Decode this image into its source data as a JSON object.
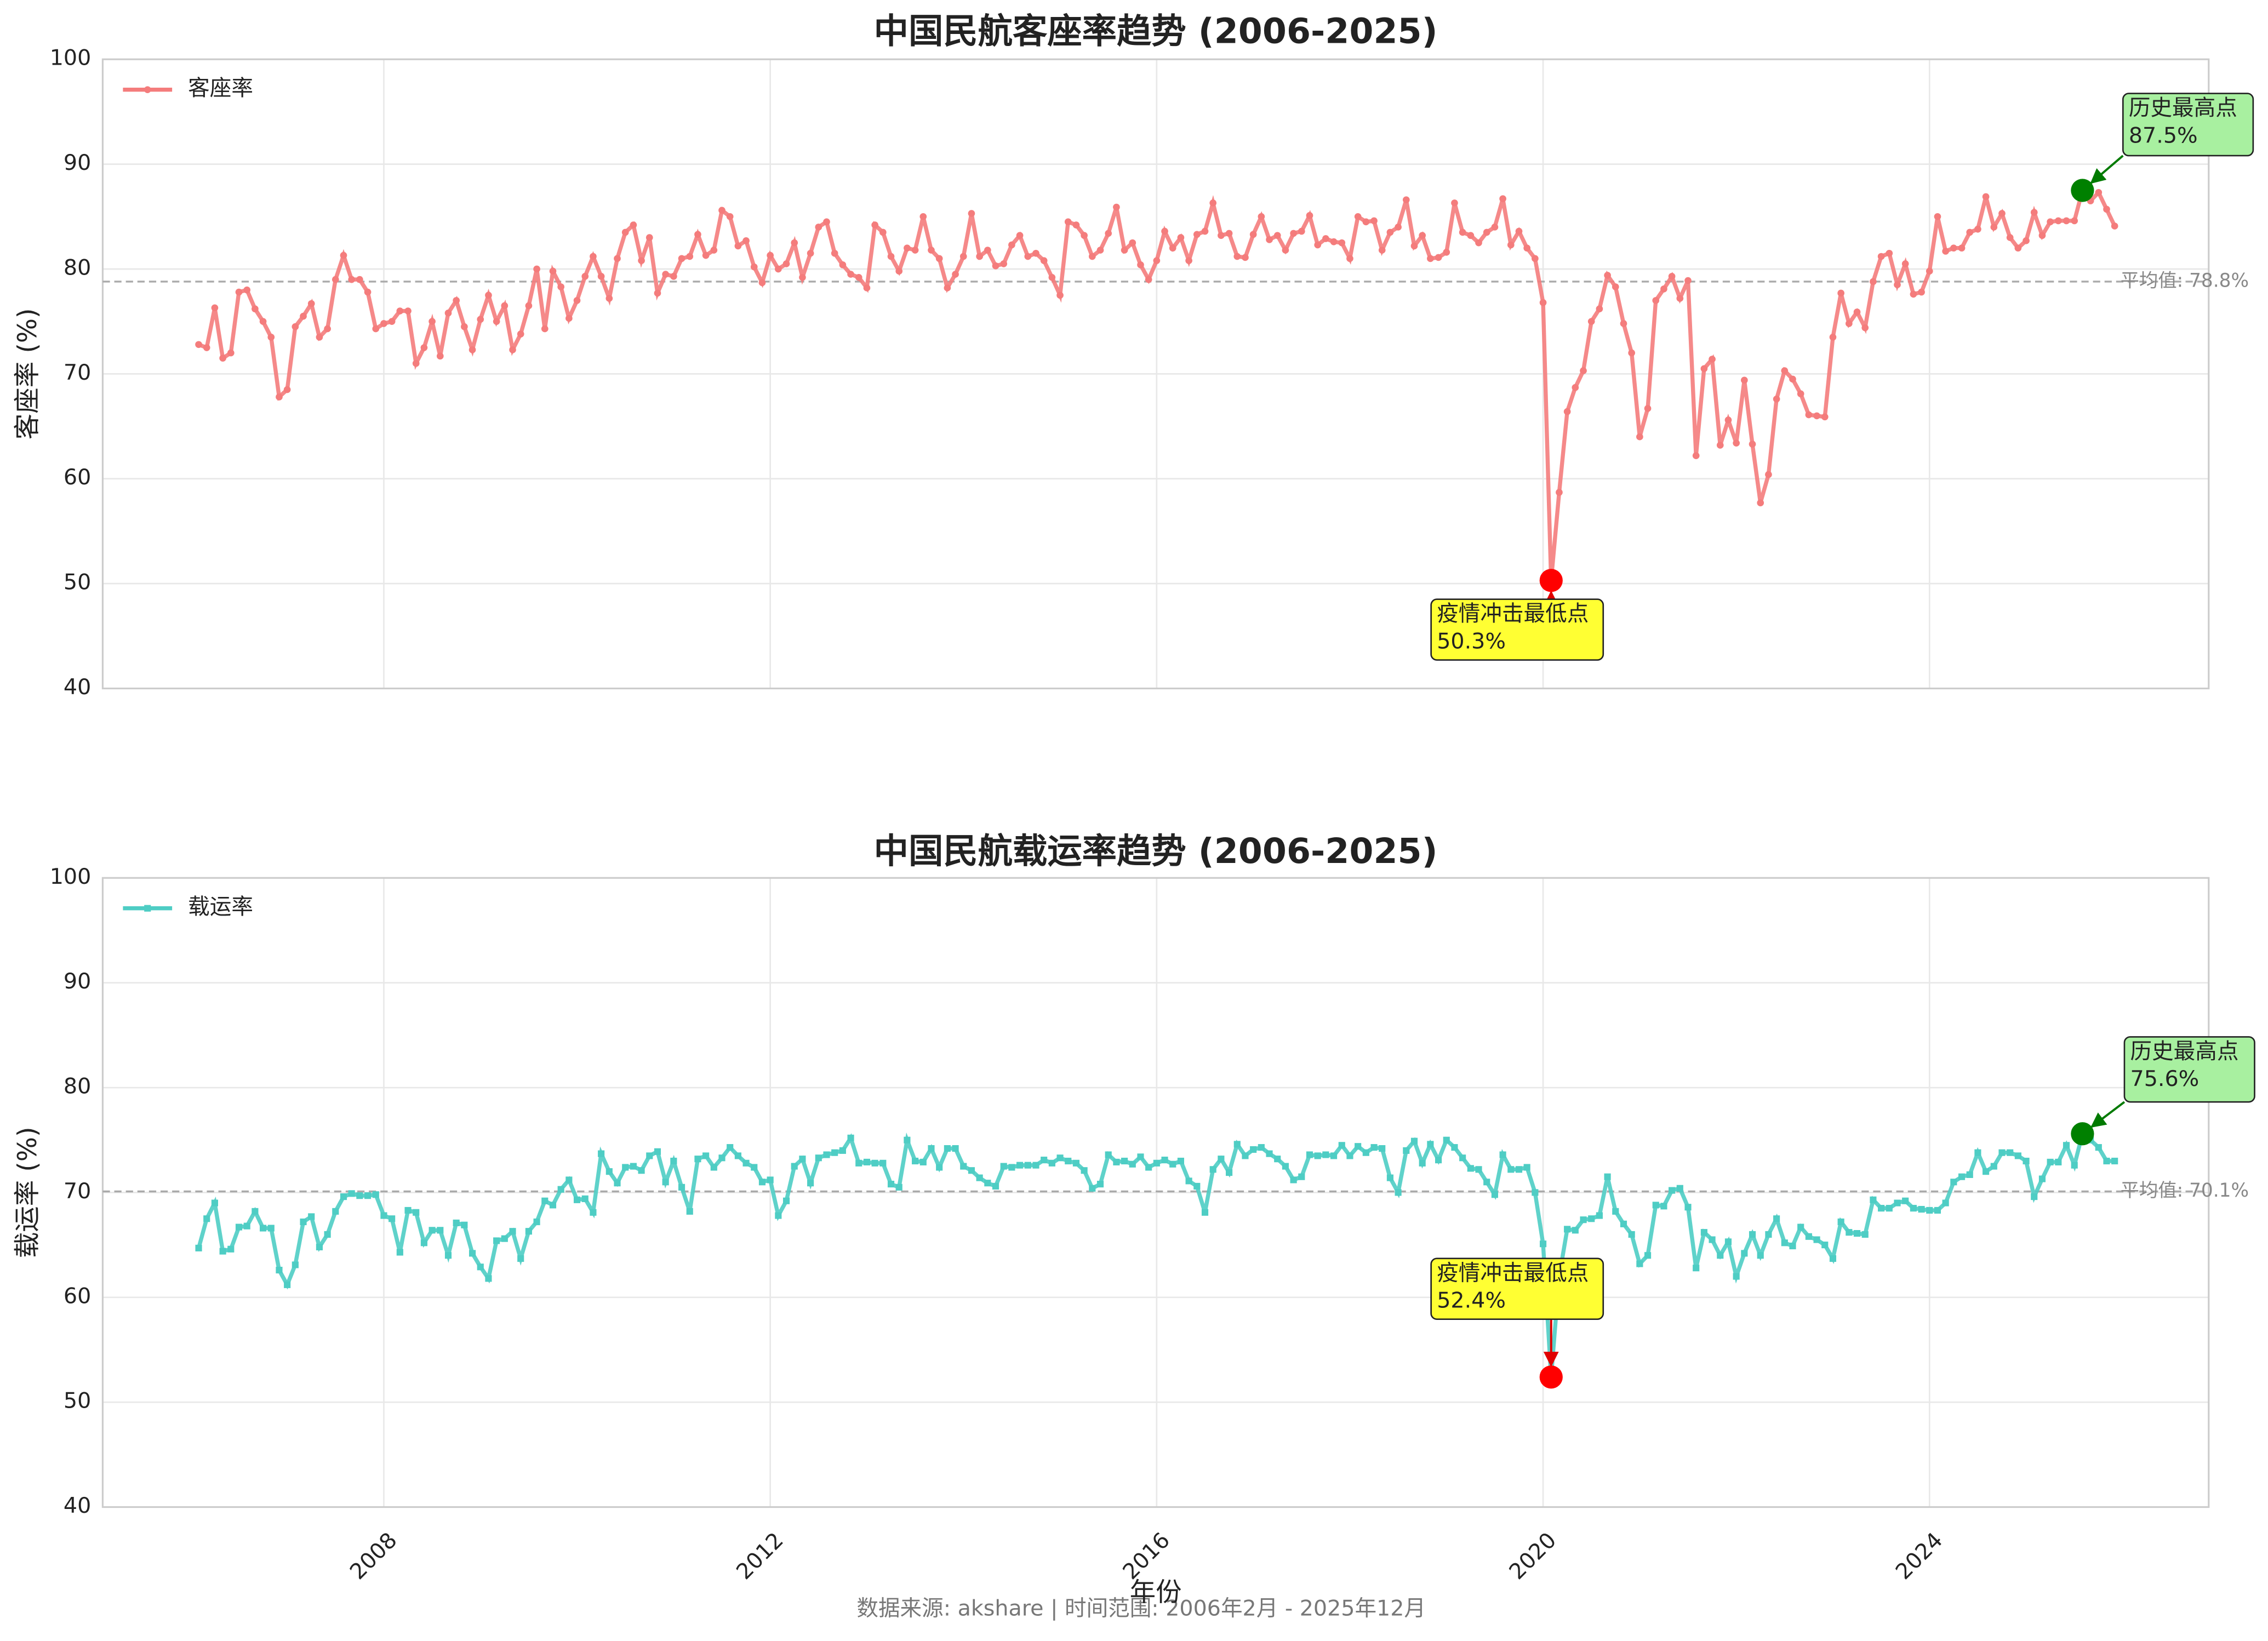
{
  "footnote": "数据来源: akshare | 时间范围: 2006年2月 - 2025年12月",
  "chart_data": [
    {
      "type": "line",
      "title": "中国民航客座率趋势 (2006-2025)",
      "ylabel": "客座率 (%)",
      "grid": true,
      "legend": "upper left",
      "xlim": [
        2005.09,
        2026.89
      ],
      "xticks": [
        2008,
        2012,
        2016,
        2020,
        2024
      ],
      "ylim": [
        40,
        100
      ],
      "yticks": [
        40,
        50,
        60,
        70,
        80,
        90,
        100
      ],
      "mean": 78.8,
      "mean_label": "平均值: 78.8%",
      "min_annotation": {
        "text": "疫情冲击最低点",
        "value_label": "50.3%"
      },
      "max_annotation": {
        "text": "历史最高点",
        "value_label": "87.5%"
      },
      "x": [
        "2006-02",
        "2006-03",
        "2006-04",
        "2006-05",
        "2006-06",
        "2006-07",
        "2006-08",
        "2006-09",
        "2006-10",
        "2006-11",
        "2006-12",
        "2007-01",
        "2007-02",
        "2007-03",
        "2007-04",
        "2007-05",
        "2007-06",
        "2007-07",
        "2007-08",
        "2007-09",
        "2007-10",
        "2007-11",
        "2007-12",
        "2008-01",
        "2008-02",
        "2008-03",
        "2008-04",
        "2008-05",
        "2008-06",
        "2008-07",
        "2008-08",
        "2008-09",
        "2008-10",
        "2008-11",
        "2008-12",
        "2009-01",
        "2009-02",
        "2009-03",
        "2009-04",
        "2009-05",
        "2009-06",
        "2009-07",
        "2009-08",
        "2009-09",
        "2009-10",
        "2009-11",
        "2009-12",
        "2010-01",
        "2010-02",
        "2010-03",
        "2010-04",
        "2010-05",
        "2010-06",
        "2010-07",
        "2010-08",
        "2010-09",
        "2010-10",
        "2010-11",
        "2010-12",
        "2011-01",
        "2011-02",
        "2011-03",
        "2011-04",
        "2011-05",
        "2011-06",
        "2011-07",
        "2011-08",
        "2011-09",
        "2011-10",
        "2011-11",
        "2011-12",
        "2012-01",
        "2012-02",
        "2012-03",
        "2012-04",
        "2012-05",
        "2012-06",
        "2012-07",
        "2012-08",
        "2012-09",
        "2012-10",
        "2012-11",
        "2012-12",
        "2013-01",
        "2013-02",
        "2013-03",
        "2013-04",
        "2013-05",
        "2013-06",
        "2013-07",
        "2013-08",
        "2013-09",
        "2013-10",
        "2013-11",
        "2013-12",
        "2014-01",
        "2014-02",
        "2014-03",
        "2014-04",
        "2014-05",
        "2014-06",
        "2014-07",
        "2014-08",
        "2014-09",
        "2014-10",
        "2014-11",
        "2014-12",
        "2015-01",
        "2015-02",
        "2015-03",
        "2015-04",
        "2015-05",
        "2015-06",
        "2015-07",
        "2015-08",
        "2015-09",
        "2015-10",
        "2015-11",
        "2015-12",
        "2016-01",
        "2016-02",
        "2016-03",
        "2016-04",
        "2016-05",
        "2016-06",
        "2016-07",
        "2016-08",
        "2016-09",
        "2016-10",
        "2016-11",
        "2016-12",
        "2017-01",
        "2017-02",
        "2017-03",
        "2017-04",
        "2017-05",
        "2017-06",
        "2017-07",
        "2017-08",
        "2017-09",
        "2017-10",
        "2017-11",
        "2017-12",
        "2018-01",
        "2018-02",
        "2018-03",
        "2018-04",
        "2018-05",
        "2018-06",
        "2018-07",
        "2018-08",
        "2018-09",
        "2018-10",
        "2018-11",
        "2018-12",
        "2019-01",
        "2019-02",
        "2019-03",
        "2019-04",
        "2019-05",
        "2019-06",
        "2019-07",
        "2019-08",
        "2019-09",
        "2019-10",
        "2019-11",
        "2019-12",
        "2020-01",
        "2020-02",
        "2020-03",
        "2020-04",
        "2020-05",
        "2020-06",
        "2020-07",
        "2020-08",
        "2020-09",
        "2020-10",
        "2020-11",
        "2020-12",
        "2021-01",
        "2021-02",
        "2021-03",
        "2021-04",
        "2021-05",
        "2021-06",
        "2021-07",
        "2021-08",
        "2021-09",
        "2021-10",
        "2021-11",
        "2021-12",
        "2022-01",
        "2022-02",
        "2022-03",
        "2022-04",
        "2022-05",
        "2022-06",
        "2022-07",
        "2022-08",
        "2022-09",
        "2022-10",
        "2022-11",
        "2022-12",
        "2023-01",
        "2023-02",
        "2023-03",
        "2023-04",
        "2023-05",
        "2023-06",
        "2023-07",
        "2023-08",
        "2023-09",
        "2023-10",
        "2023-11",
        "2023-12",
        "2024-01",
        "2024-02",
        "2024-03",
        "2024-04",
        "2024-05",
        "2024-06",
        "2024-07",
        "2024-08",
        "2024-09",
        "2024-10",
        "2024-11",
        "2024-12",
        "2025-01",
        "2025-02",
        "2025-03",
        "2025-04",
        "2025-05",
        "2025-06",
        "2025-07",
        "2025-08",
        "2025-09",
        "2025-10",
        "2025-11",
        "2025-12"
      ],
      "series": [
        {
          "name": "客座率",
          "color": "#f47c7c",
          "marker": "circle",
          "values": [
            72.8,
            72.5,
            76.3,
            71.5,
            72.0,
            77.8,
            78.0,
            76.2,
            75.0,
            73.5,
            67.8,
            68.5,
            74.5,
            75.5,
            76.7,
            73.5,
            74.3,
            79.0,
            81.3,
            79.0,
            79.0,
            77.8,
            74.3,
            74.8,
            75.0,
            76.0,
            76.0,
            71.0,
            72.5,
            75.0,
            71.7,
            75.8,
            77.0,
            74.5,
            72.3,
            75.2,
            77.5,
            75.0,
            76.5,
            72.3,
            73.8,
            76.5,
            80.0,
            74.3,
            79.8,
            78.3,
            75.3,
            77.0,
            79.3,
            81.2,
            79.3,
            77.2,
            81.0,
            83.5,
            84.2,
            80.8,
            83.0,
            77.7,
            79.5,
            79.3,
            81.0,
            81.2,
            83.3,
            81.3,
            81.8,
            85.6,
            85.0,
            82.2,
            82.7,
            80.2,
            78.7,
            81.3,
            80.0,
            80.5,
            82.5,
            79.2,
            81.5,
            84.0,
            84.5,
            81.5,
            80.4,
            79.5,
            79.2,
            78.2,
            84.2,
            83.5,
            81.2,
            79.8,
            82.0,
            81.8,
            85.0,
            81.8,
            81.0,
            78.2,
            79.5,
            81.2,
            85.3,
            81.2,
            81.8,
            80.3,
            80.5,
            82.3,
            83.2,
            81.2,
            81.5,
            80.8,
            79.2,
            77.5,
            84.5,
            84.2,
            83.2,
            81.2,
            81.8,
            83.4,
            85.9,
            81.8,
            82.5,
            80.4,
            79.0,
            80.8,
            83.6,
            82.0,
            83.0,
            80.8,
            83.3,
            83.6,
            86.3,
            83.2,
            83.4,
            81.2,
            81.1,
            83.3,
            85.0,
            82.8,
            83.2,
            81.8,
            83.4,
            83.6,
            85.1,
            82.3,
            82.9,
            82.6,
            82.5,
            81.0,
            85.0,
            84.5,
            84.6,
            81.8,
            83.5,
            84.0,
            86.6,
            82.2,
            83.2,
            81.0,
            81.1,
            81.6,
            86.3,
            83.5,
            83.2,
            82.5,
            83.5,
            84.0,
            86.7,
            82.3,
            83.6,
            82.0,
            81.0,
            76.8,
            50.3,
            58.7,
            66.4,
            68.7,
            70.3,
            75.0,
            76.2,
            79.4,
            78.3,
            74.8,
            72.0,
            64.0,
            66.7,
            77.0,
            78.1,
            79.3,
            77.2,
            78.9,
            62.2,
            70.5,
            71.4,
            63.2,
            65.6,
            63.4,
            69.4,
            63.3,
            57.7,
            60.4,
            67.6,
            70.3,
            69.5,
            68.1,
            66.1,
            66.0,
            65.9,
            73.5,
            77.7,
            74.8,
            75.9,
            74.4,
            78.8,
            81.2,
            81.5,
            78.5,
            80.5,
            77.6,
            77.8,
            79.8,
            85.0,
            81.7,
            82.0,
            82.0,
            83.5,
            83.8,
            86.9,
            84.0,
            85.3,
            83.0,
            82.0,
            82.7,
            85.4,
            83.2,
            84.5,
            84.6,
            84.6,
            84.6,
            87.5,
            86.5,
            87.3,
            85.7,
            84.1
          ]
        }
      ]
    },
    {
      "type": "line",
      "title": "中国民航载运率趋势 (2006-2025)",
      "ylabel": "载运率 (%)",
      "xlabel": "年份",
      "grid": true,
      "legend": "upper left",
      "xlim": [
        2005.09,
        2026.89
      ],
      "xticks": [
        2008,
        2012,
        2016,
        2020,
        2024
      ],
      "ylim": [
        40,
        100
      ],
      "yticks": [
        40,
        50,
        60,
        70,
        80,
        90,
        100
      ],
      "mean": 70.1,
      "mean_label": "平均值: 70.1%",
      "min_annotation": {
        "text": "疫情冲击最低点",
        "value_label": "52.4%"
      },
      "max_annotation": {
        "text": "历史最高点",
        "value_label": "75.6%"
      },
      "x": [
        "2006-02",
        "2006-03",
        "2006-04",
        "2006-05",
        "2006-06",
        "2006-07",
        "2006-08",
        "2006-09",
        "2006-10",
        "2006-11",
        "2006-12",
        "2007-01",
        "2007-02",
        "2007-03",
        "2007-04",
        "2007-05",
        "2007-06",
        "2007-07",
        "2007-08",
        "2007-09",
        "2007-10",
        "2007-11",
        "2007-12",
        "2008-01",
        "2008-02",
        "2008-03",
        "2008-04",
        "2008-05",
        "2008-06",
        "2008-07",
        "2008-08",
        "2008-09",
        "2008-10",
        "2008-11",
        "2008-12",
        "2009-01",
        "2009-02",
        "2009-03",
        "2009-04",
        "2009-05",
        "2009-06",
        "2009-07",
        "2009-08",
        "2009-09",
        "2009-10",
        "2009-11",
        "2009-12",
        "2010-01",
        "2010-02",
        "2010-03",
        "2010-04",
        "2010-05",
        "2010-06",
        "2010-07",
        "2010-08",
        "2010-09",
        "2010-10",
        "2010-11",
        "2010-12",
        "2011-01",
        "2011-02",
        "2011-03",
        "2011-04",
        "2011-05",
        "2011-06",
        "2011-07",
        "2011-08",
        "2011-09",
        "2011-10",
        "2011-11",
        "2011-12",
        "2012-01",
        "2012-02",
        "2012-03",
        "2012-04",
        "2012-05",
        "2012-06",
        "2012-07",
        "2012-08",
        "2012-09",
        "2012-10",
        "2012-11",
        "2012-12",
        "2013-01",
        "2013-02",
        "2013-03",
        "2013-04",
        "2013-05",
        "2013-06",
        "2013-07",
        "2013-08",
        "2013-09",
        "2013-10",
        "2013-11",
        "2013-12",
        "2014-01",
        "2014-02",
        "2014-03",
        "2014-04",
        "2014-05",
        "2014-06",
        "2014-07",
        "2014-08",
        "2014-09",
        "2014-10",
        "2014-11",
        "2014-12",
        "2015-01",
        "2015-02",
        "2015-03",
        "2015-04",
        "2015-05",
        "2015-06",
        "2015-07",
        "2015-08",
        "2015-09",
        "2015-10",
        "2015-11",
        "2015-12",
        "2016-01",
        "2016-02",
        "2016-03",
        "2016-04",
        "2016-05",
        "2016-06",
        "2016-07",
        "2016-08",
        "2016-09",
        "2016-10",
        "2016-11",
        "2016-12",
        "2017-01",
        "2017-02",
        "2017-03",
        "2017-04",
        "2017-05",
        "2017-06",
        "2017-07",
        "2017-08",
        "2017-09",
        "2017-10",
        "2017-11",
        "2017-12",
        "2018-01",
        "2018-02",
        "2018-03",
        "2018-04",
        "2018-05",
        "2018-06",
        "2018-07",
        "2018-08",
        "2018-09",
        "2018-10",
        "2018-11",
        "2018-12",
        "2019-01",
        "2019-02",
        "2019-03",
        "2019-04",
        "2019-05",
        "2019-06",
        "2019-07",
        "2019-08",
        "2019-09",
        "2019-10",
        "2019-11",
        "2019-12",
        "2020-01",
        "2020-02",
        "2020-03",
        "2020-04",
        "2020-05",
        "2020-06",
        "2020-07",
        "2020-08",
        "2020-09",
        "2020-10",
        "2020-11",
        "2020-12",
        "2021-01",
        "2021-02",
        "2021-03",
        "2021-04",
        "2021-05",
        "2021-06",
        "2021-07",
        "2021-08",
        "2021-09",
        "2021-10",
        "2021-11",
        "2021-12",
        "2022-01",
        "2022-02",
        "2022-03",
        "2022-04",
        "2022-05",
        "2022-06",
        "2022-07",
        "2022-08",
        "2022-09",
        "2022-10",
        "2022-11",
        "2022-12",
        "2023-01",
        "2023-02",
        "2023-03",
        "2023-04",
        "2023-05",
        "2023-06",
        "2023-07",
        "2023-08",
        "2023-09",
        "2023-10",
        "2023-11",
        "2023-12",
        "2024-01",
        "2024-02",
        "2024-03",
        "2024-04",
        "2024-05",
        "2024-06",
        "2024-07",
        "2024-08",
        "2024-09",
        "2024-10",
        "2024-11",
        "2024-12",
        "2025-01",
        "2025-02",
        "2025-03",
        "2025-04",
        "2025-05",
        "2025-06",
        "2025-07",
        "2025-08",
        "2025-09",
        "2025-10",
        "2025-11",
        "2025-12"
      ],
      "series": [
        {
          "name": "载运率",
          "color": "#4ecdc4",
          "marker": "square",
          "values": [
            64.7,
            67.5,
            69.0,
            64.4,
            64.6,
            66.7,
            66.8,
            68.2,
            66.6,
            66.6,
            62.6,
            61.2,
            63.1,
            67.2,
            67.7,
            64.8,
            66.0,
            68.2,
            69.6,
            69.9,
            69.7,
            69.7,
            69.8,
            67.8,
            67.5,
            64.3,
            68.3,
            68.1,
            65.2,
            66.4,
            66.4,
            64.0,
            67.1,
            66.9,
            64.2,
            62.9,
            61.8,
            65.4,
            65.6,
            66.3,
            63.7,
            66.3,
            67.2,
            69.2,
            68.8,
            70.3,
            71.2,
            69.3,
            69.4,
            68.1,
            73.7,
            72.0,
            70.9,
            72.4,
            72.5,
            72.1,
            73.5,
            73.9,
            71.0,
            73.0,
            70.5,
            68.2,
            73.2,
            73.5,
            72.4,
            73.3,
            74.3,
            73.5,
            72.8,
            72.4,
            71.0,
            71.2,
            67.8,
            69.2,
            72.5,
            73.2,
            70.9,
            73.3,
            73.6,
            73.8,
            74.0,
            75.2,
            72.8,
            72.9,
            72.8,
            72.8,
            70.8,
            70.5,
            75.0,
            73.0,
            72.9,
            74.2,
            72.4,
            74.2,
            74.2,
            72.5,
            72.1,
            71.4,
            70.9,
            70.6,
            72.5,
            72.4,
            72.6,
            72.6,
            72.6,
            73.1,
            72.8,
            73.3,
            73.0,
            72.8,
            72.1,
            70.4,
            70.8,
            73.6,
            72.9,
            73.0,
            72.7,
            73.4,
            72.4,
            72.8,
            73.1,
            72.7,
            73.0,
            71.1,
            70.6,
            68.1,
            72.2,
            73.2,
            71.9,
            74.6,
            73.5,
            74.1,
            74.3,
            73.7,
            73.2,
            72.5,
            71.2,
            71.5,
            73.6,
            73.5,
            73.6,
            73.5,
            74.5,
            73.5,
            74.4,
            73.8,
            74.3,
            74.2,
            71.4,
            70.0,
            74.0,
            74.9,
            72.8,
            74.6,
            73.1,
            75.0,
            74.3,
            73.3,
            72.3,
            72.2,
            71.0,
            69.8,
            73.6,
            72.2,
            72.2,
            72.4,
            70.0,
            65.1,
            52.4,
            62.0,
            66.5,
            66.4,
            67.4,
            67.5,
            67.8,
            71.5,
            68.2,
            67.0,
            66.0,
            63.2,
            64.0,
            68.8,
            68.7,
            70.2,
            70.4,
            68.6,
            62.8,
            66.2,
            65.5,
            64.0,
            65.3,
            62.0,
            64.2,
            66.0,
            64.0,
            66.0,
            67.5,
            65.2,
            64.9,
            66.7,
            65.8,
            65.5,
            65.0,
            63.7,
            67.2,
            66.2,
            66.1,
            66.0,
            69.3,
            68.5,
            68.5,
            69.0,
            69.2,
            68.5,
            68.4,
            68.3,
            68.3,
            69.0,
            71.0,
            71.5,
            71.7,
            73.8,
            72.0,
            72.5,
            73.8,
            73.8,
            73.5,
            73.0,
            69.6,
            71.3,
            72.9,
            72.9,
            74.5,
            72.6,
            75.6,
            75.0,
            74.3,
            73.0,
            73.0
          ]
        }
      ]
    }
  ]
}
